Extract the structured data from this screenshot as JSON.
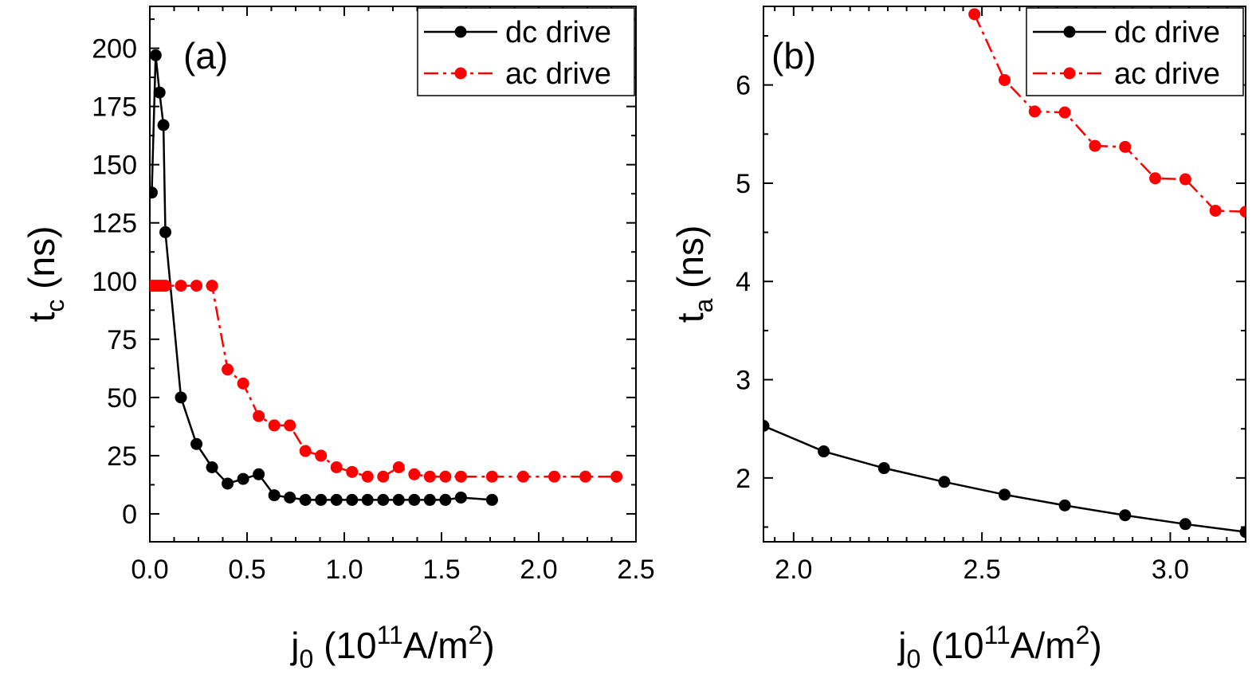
{
  "chart_data": [
    {
      "type": "line",
      "panel_label": "(a)",
      "xlabel": {
        "base": "j",
        "sub": "0",
        "text": " (10",
        "sup": "11",
        "unit": "A/m",
        "unit_sup": "2",
        "close": ")"
      },
      "ylabel": {
        "base": "t",
        "sub": "c",
        "unit": " (ns)"
      },
      "xlim": [
        0,
        2.5
      ],
      "ylim": [
        -12,
        218
      ],
      "xticks": [
        0.0,
        0.5,
        1.0,
        1.5,
        2.0,
        2.5
      ],
      "xtick_labels": [
        "0.0",
        "0.5",
        "1.0",
        "1.5",
        "2.0",
        "2.5"
      ],
      "yticks": [
        0,
        25,
        50,
        75,
        100,
        125,
        150,
        175,
        200
      ],
      "ytick_labels": [
        "0",
        "25",
        "50",
        "75",
        "100",
        "125",
        "150",
        "175",
        "200"
      ],
      "legend_position": "top-right",
      "series": [
        {
          "name": "dc drive",
          "color": "#000000",
          "line_style": "solid",
          "x": [
            0.01,
            0.03,
            0.05,
            0.07,
            0.08,
            0.16,
            0.24,
            0.32,
            0.4,
            0.48,
            0.56,
            0.64,
            0.72,
            0.8,
            0.88,
            0.96,
            1.04,
            1.12,
            1.2,
            1.28,
            1.36,
            1.44,
            1.52,
            1.6,
            1.76
          ],
          "y": [
            138,
            197,
            181,
            167,
            121,
            50,
            30,
            20,
            13,
            15,
            17,
            8,
            7,
            6,
            6,
            6,
            6,
            6,
            6,
            6,
            6,
            6,
            6,
            7,
            6
          ]
        },
        {
          "name": "ac drive",
          "color": "#ff0000",
          "line_style": "dashdot",
          "x": [
            0.01,
            0.02,
            0.03,
            0.04,
            0.05,
            0.06,
            0.07,
            0.08,
            0.16,
            0.24,
            0.32,
            0.4,
            0.48,
            0.56,
            0.64,
            0.72,
            0.8,
            0.88,
            0.96,
            1.04,
            1.12,
            1.2,
            1.28,
            1.36,
            1.44,
            1.52,
            1.6,
            1.76,
            1.92,
            2.08,
            2.24,
            2.4
          ],
          "y": [
            98,
            98,
            98,
            98,
            98,
            98,
            98,
            98,
            98,
            98,
            98,
            62,
            56,
            42,
            38,
            38,
            27,
            25,
            20,
            18,
            16,
            16,
            20,
            17,
            16,
            16,
            16,
            16,
            16,
            16,
            16,
            16
          ]
        }
      ]
    },
    {
      "type": "line",
      "panel_label": "(b)",
      "xlabel": {
        "base": "j",
        "sub": "0",
        "text": " (10",
        "sup": "11",
        "unit": "A/m",
        "unit_sup": "2",
        "close": ")"
      },
      "ylabel": {
        "base": "t",
        "sub": "a",
        "unit": " (ns)"
      },
      "xlim": [
        1.92,
        3.2
      ],
      "ylim": [
        1.35,
        6.8
      ],
      "xticks": [
        2.0,
        2.5,
        3.0
      ],
      "xtick_labels": [
        "2.0",
        "2.5",
        "3.0"
      ],
      "yticks": [
        2,
        3,
        4,
        5,
        6
      ],
      "ytick_labels": [
        "2",
        "3",
        "4",
        "5",
        "6"
      ],
      "legend_position": "top-right",
      "series": [
        {
          "name": "dc drive",
          "color": "#000000",
          "line_style": "solid",
          "x": [
            1.92,
            2.08,
            2.24,
            2.4,
            2.56,
            2.72,
            2.88,
            3.04,
            3.2
          ],
          "y": [
            2.53,
            2.27,
            2.1,
            1.96,
            1.83,
            1.72,
            1.62,
            1.53,
            1.45
          ]
        },
        {
          "name": "ac drive",
          "color": "#ff0000",
          "line_style": "dashdot",
          "x": [
            2.48,
            2.56,
            2.64,
            2.72,
            2.8,
            2.88,
            2.96,
            3.04,
            3.12,
            3.2
          ],
          "y": [
            6.72,
            6.05,
            5.73,
            5.72,
            5.38,
            5.37,
            5.05,
            5.04,
            4.72,
            4.71
          ]
        }
      ]
    }
  ]
}
